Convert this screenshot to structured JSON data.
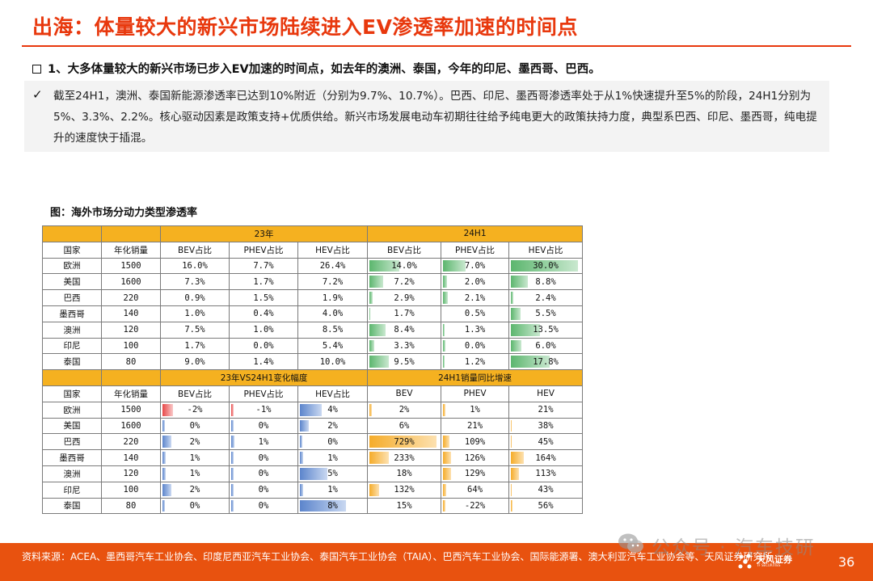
{
  "title": "出海：体量较大的新兴市场陆续进入EV渗透率加速的时间点",
  "section_heading": "1、大多体量较大的新兴市场已步入EV加速的时间点，如去年的澳洲、泰国，今年的印尼、墨西哥、巴西。",
  "bullet_check": "✓",
  "bullet_text": "截至24H1，澳洲、泰国新能源渗透率已达到10%附近（分别为9.7%、10.7%）。巴西、印尼、墨西哥渗透率处于从1%快速提升至5%的阶段，24H1分别为5%、3.3%、2.2%。核心驱动因素是政策支持+优质供给。新兴市场发展电动车初期往往给予纯电更大的政策扶持力度，典型系巴西、印尼、墨西哥，纯电提升的速度快于插混。",
  "figure_caption": "图：海外市场分动力类型渗透率",
  "table": {
    "group1": {
      "period_a": "23年",
      "period_b": "24H1",
      "headers": [
        "国家",
        "年化销量",
        "BEV占比",
        "PHEV占比",
        "HEV占比",
        "BEV占比",
        "PHEV占比",
        "HEV占比"
      ],
      "rows": [
        [
          "欧洲",
          "1500",
          "16.0%",
          "7.7%",
          "26.4%",
          "14.0%",
          "7.0%",
          "30.0%"
        ],
        [
          "美国",
          "1600",
          "7.3%",
          "1.7%",
          "7.2%",
          "7.2%",
          "2.0%",
          "8.8%"
        ],
        [
          "巴西",
          "220",
          "0.9%",
          "1.5%",
          "1.9%",
          "2.9%",
          "2.1%",
          "2.4%"
        ],
        [
          "墨西哥",
          "140",
          "1.0%",
          "0.4%",
          "4.0%",
          "1.7%",
          "0.5%",
          "5.5%"
        ],
        [
          "澳洲",
          "120",
          "7.5%",
          "1.0%",
          "8.5%",
          "8.4%",
          "1.3%",
          "13.5%"
        ],
        [
          "印尼",
          "100",
          "1.7%",
          "0.0%",
          "5.4%",
          "3.3%",
          "0.0%",
          "6.0%"
        ],
        [
          "泰国",
          "80",
          "9.0%",
          "1.4%",
          "10.0%",
          "9.5%",
          "1.2%",
          "17.8%"
        ]
      ],
      "bar_levels_24h1": [
        [
          0.45,
          0.39,
          0.97
        ],
        [
          0.23,
          0.11,
          0.28
        ],
        [
          0.09,
          0.12,
          0.08
        ],
        [
          0.05,
          0.03,
          0.18
        ],
        [
          0.27,
          0.07,
          0.44
        ],
        [
          0.11,
          0.0,
          0.19
        ],
        [
          0.31,
          0.07,
          0.58
        ]
      ]
    },
    "group2": {
      "period_a": "23年VS24H1变化幅度",
      "period_b": "24H1销量同比增速",
      "headers": [
        "国家",
        "年化销量",
        "BEV占比",
        "PHEV占比",
        "HEV占比",
        "BEV",
        "PHEV",
        "HEV"
      ],
      "rows": [
        [
          "欧洲",
          "1500",
          "-2%",
          "-1%",
          "4%",
          "2%",
          "1%",
          "21%"
        ],
        [
          "美国",
          "1600",
          "0%",
          "0%",
          "2%",
          "6%",
          "21%",
          "38%"
        ],
        [
          "巴西",
          "220",
          "2%",
          "1%",
          "0%",
          "729%",
          "109%",
          "45%"
        ],
        [
          "墨西哥",
          "140",
          "1%",
          "0%",
          "1%",
          "233%",
          "126%",
          "164%"
        ],
        [
          "澳洲",
          "120",
          "1%",
          "0%",
          "5%",
          "18%",
          "129%",
          "113%"
        ],
        [
          "印尼",
          "100",
          "2%",
          "0%",
          "1%",
          "132%",
          "64%",
          "43%"
        ],
        [
          "泰国",
          "80",
          "0%",
          "0%",
          "8%",
          "15%",
          "-22%",
          "56%"
        ]
      ],
      "bar_levels_change": [
        [
          -0.2,
          -0.08,
          0.36
        ],
        [
          0.0,
          0.0,
          0.18
        ],
        [
          0.18,
          0.09,
          0.0
        ],
        [
          0.09,
          0.0,
          0.09
        ],
        [
          0.09,
          0.0,
          0.45
        ],
        [
          0.18,
          0.0,
          0.09
        ],
        [
          0.0,
          0.0,
          0.72
        ]
      ],
      "bar_levels_growth": [
        [
          0.0,
          0.0,
          0.03
        ],
        [
          0.01,
          0.03,
          0.05
        ],
        [
          0.97,
          0.14,
          0.06
        ],
        [
          0.31,
          0.17,
          0.22
        ],
        [
          0.02,
          0.17,
          0.15
        ],
        [
          0.18,
          0.09,
          0.06
        ],
        [
          0.02,
          0.0,
          0.07
        ]
      ]
    }
  },
  "source": "资料来源：ACEA、墨西哥汽车工业协会、印度尼西亚汽车工业协会、泰国汽车工业协会（TAIA）、巴西汽车工业协会、国际能源署、澳大利亚汽车工业协会等、天风证券研究所",
  "watermark": "公众号 · 汽车技研",
  "logo_text": "天风证券",
  "logo_sub": "TF SECURITIES",
  "page_number": "36",
  "colors": {
    "accent": "#e8380d",
    "footer": "#e8520f",
    "header_fill": "#f5b120",
    "bar_green": "#5cb66e",
    "bar_red": "#e84848",
    "bar_blue": "#5c85cc",
    "bar_orange": "#f5ac2a"
  }
}
